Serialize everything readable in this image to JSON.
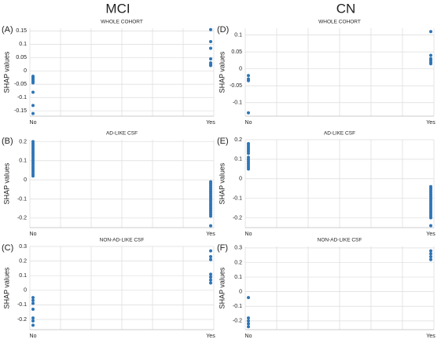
{
  "columns": [
    "MCI",
    "CN"
  ],
  "chart_data": [
    {
      "type": "scatter",
      "label": "(A)",
      "title": "WHOLE COHORT",
      "ylabel": "SHAP values",
      "color": "#2e75b6",
      "grid": true,
      "categories": [
        "No",
        "Yes"
      ],
      "values": [
        [
          -0.02,
          -0.025,
          -0.03,
          -0.035,
          -0.04,
          -0.045,
          -0.08,
          -0.13,
          -0.16
        ],
        [
          0.155,
          0.11,
          0.085,
          0.045,
          0.03,
          0.025,
          0.02
        ]
      ],
      "ylim": [
        -0.17,
        0.16
      ],
      "yticks": [
        0.15,
        0.1,
        0.05,
        0,
        -0.05,
        -0.1,
        -0.15
      ]
    },
    {
      "type": "scatter",
      "label": "(D)",
      "title": "WHOLE COHORT",
      "ylabel": "SHAP values",
      "color": "#2e75b6",
      "grid": true,
      "categories": [
        "No",
        "Yes"
      ],
      "values": [
        [
          -0.02,
          -0.03,
          -0.035,
          -0.13
        ],
        [
          0.11,
          0.04,
          0.03,
          0.025,
          0.02,
          0.015
        ]
      ],
      "ylim": [
        -0.14,
        0.12
      ],
      "yticks": [
        0.1,
        0.05,
        0,
        -0.05,
        -0.1
      ]
    },
    {
      "type": "scatter",
      "label": "(B)",
      "title": "AD-LIKE CSF",
      "ylabel": "SHAP values",
      "color": "#2e75b6",
      "grid": true,
      "categories": [
        "No",
        "Yes"
      ],
      "values": [
        [
          0.2,
          0.19,
          0.18,
          0.17,
          0.16,
          0.15,
          0.14,
          0.13,
          0.12,
          0.11,
          0.1,
          0.09,
          0.08,
          0.07,
          0.06,
          0.05,
          0.04,
          0.03,
          0.02
        ],
        [
          -0.01,
          -0.02,
          -0.03,
          -0.04,
          -0.05,
          -0.06,
          -0.07,
          -0.08,
          -0.09,
          -0.1,
          -0.11,
          -0.12,
          -0.13,
          -0.14,
          -0.15,
          -0.16,
          -0.17,
          -0.18,
          -0.19,
          -0.24
        ]
      ],
      "ylim": [
        -0.25,
        0.21
      ],
      "yticks": [
        0.2,
        0.1,
        0,
        -0.1,
        -0.2
      ]
    },
    {
      "type": "scatter",
      "label": "(E)",
      "title": "AD-LIKE CSF",
      "ylabel": "SHAP values",
      "color": "#2e75b6",
      "grid": true,
      "categories": [
        "No",
        "Yes"
      ],
      "values": [
        [
          0.18,
          0.17,
          0.16,
          0.15,
          0.14,
          0.13,
          0.11,
          0.1,
          0.09,
          0.08,
          0.07,
          0.06,
          0.05
        ],
        [
          -0.04,
          -0.05,
          -0.06,
          -0.07,
          -0.08,
          -0.09,
          -0.1,
          -0.11,
          -0.12,
          -0.13,
          -0.14,
          -0.15,
          -0.16,
          -0.17,
          -0.18,
          -0.19,
          -0.2,
          -0.24
        ]
      ],
      "ylim": [
        -0.25,
        0.2
      ],
      "yticks": [
        0.2,
        0.1,
        0,
        -0.1,
        -0.2
      ]
    },
    {
      "type": "scatter",
      "label": "(C)",
      "title": "NON-AD-LIKE CSF",
      "ylabel": "SHAP values",
      "color": "#2e75b6",
      "grid": true,
      "categories": [
        "No",
        "Yes"
      ],
      "values": [
        [
          -0.05,
          -0.07,
          -0.09,
          -0.13,
          -0.19,
          -0.21,
          -0.24
        ],
        [
          0.27,
          0.23,
          0.21,
          0.11,
          0.09,
          0.07,
          0.05
        ]
      ],
      "ylim": [
        -0.27,
        0.3
      ],
      "yticks": [
        0.3,
        0.2,
        0.1,
        0,
        -0.1,
        -0.2
      ]
    },
    {
      "type": "scatter",
      "label": "(F)",
      "title": "NON-AD-LIKE CSF",
      "ylabel": "SHAP values",
      "color": "#2e75b6",
      "grid": true,
      "categories": [
        "No",
        "Yes"
      ],
      "values": [
        [
          -0.04,
          -0.18,
          -0.2,
          -0.22,
          -0.24
        ],
        [
          0.28,
          0.26,
          0.24,
          0.22
        ]
      ],
      "ylim": [
        -0.26,
        0.31
      ],
      "yticks": [
        0.3,
        0.2,
        0.1,
        0,
        -0.1,
        -0.2
      ]
    }
  ]
}
